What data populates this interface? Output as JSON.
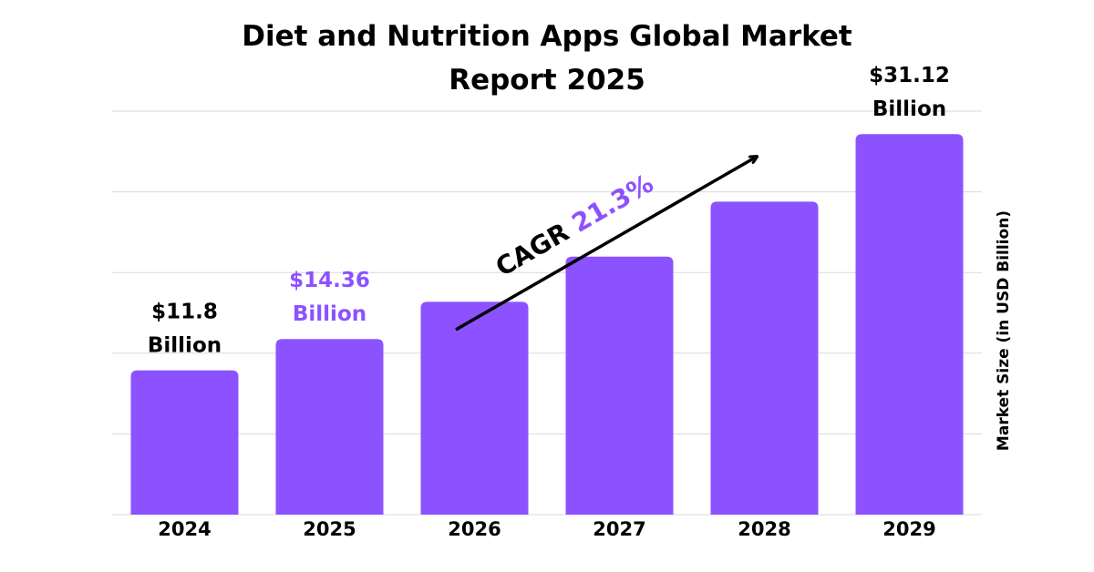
{
  "chart_data": {
    "type": "bar",
    "title_lines": [
      "Diet and Nutrition Apps Global Market",
      "Report 2025"
    ],
    "ylabel": "Market Size (in USD Billion)",
    "categories": [
      "2024",
      "2025",
      "2026",
      "2027",
      "2028",
      "2029"
    ],
    "values": [
      11.8,
      14.36,
      17.4,
      21.1,
      25.6,
      31.12
    ],
    "data_labels": [
      {
        "index": 0,
        "lines": [
          "$11.8",
          "Billion"
        ],
        "color": "#000000"
      },
      {
        "index": 1,
        "lines": [
          "$14.36",
          "Billion"
        ],
        "color": "#8c52ff"
      },
      {
        "index": 5,
        "lines": [
          "$31.12",
          "Billion"
        ],
        "color": "#000000"
      }
    ],
    "annotation": {
      "prefix": "CAGR ",
      "value": "21.3%",
      "prefix_color": "#000000",
      "value_color": "#8c52ff"
    },
    "ylim": [
      0,
      33
    ],
    "grid": true,
    "bar_color": "#8c52ff",
    "grid_color": "#d9d9d9"
  }
}
